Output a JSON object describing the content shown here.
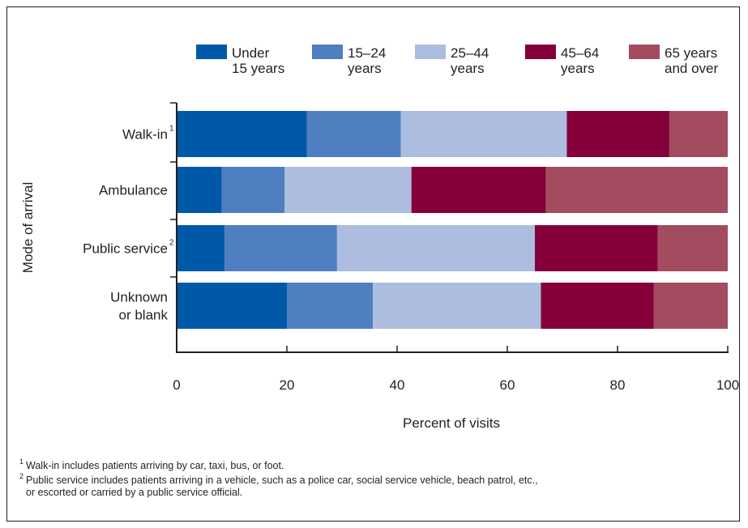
{
  "chart_data": {
    "type": "bar",
    "orientation": "horizontal",
    "stacked": true,
    "categories": [
      {
        "label": [
          "Walk-in"
        ],
        "sup": "1"
      },
      {
        "label": [
          "Ambulance"
        ],
        "sup": ""
      },
      {
        "label": [
          "Public service"
        ],
        "sup": "2"
      },
      {
        "label": [
          "Unknown",
          "or blank"
        ],
        "sup": ""
      }
    ],
    "series": [
      {
        "name": [
          "Under",
          "15 years"
        ],
        "color": "#0059a8",
        "values": [
          23.6,
          8.2,
          8.7,
          20.0
        ]
      },
      {
        "name": [
          "15–24",
          "years"
        ],
        "color": "#4f7ec1",
        "values": [
          17.1,
          11.4,
          20.4,
          15.6
        ]
      },
      {
        "name": [
          "25–44",
          "years"
        ],
        "color": "#adbde0",
        "values": [
          30.1,
          23.0,
          35.9,
          30.5
        ]
      },
      {
        "name": [
          "45–64",
          "years"
        ],
        "color": "#85003a",
        "values": [
          18.6,
          24.4,
          22.3,
          20.5
        ]
      },
      {
        "name": [
          "65 years",
          "and over"
        ],
        "color": "#a34c60",
        "values": [
          10.6,
          33.0,
          12.7,
          13.4
        ]
      }
    ],
    "xlabel": "Percent of visits",
    "ylabel": "Mode of arrival",
    "xlim": [
      0,
      100
    ],
    "xticks": [
      "0",
      "20",
      "40",
      "60",
      "80",
      "100"
    ],
    "legend_position": "top"
  },
  "footnotes": [
    {
      "num": "1",
      "lines": [
        "Walk-in includes patients arriving by car, taxi, bus, or foot."
      ]
    },
    {
      "num": "2",
      "lines": [
        "Public service includes patients arriving in a vehicle, such as a police car, social service vehicle, beach patrol, etc.,",
        "or escorted or carried by a public service official."
      ]
    }
  ]
}
